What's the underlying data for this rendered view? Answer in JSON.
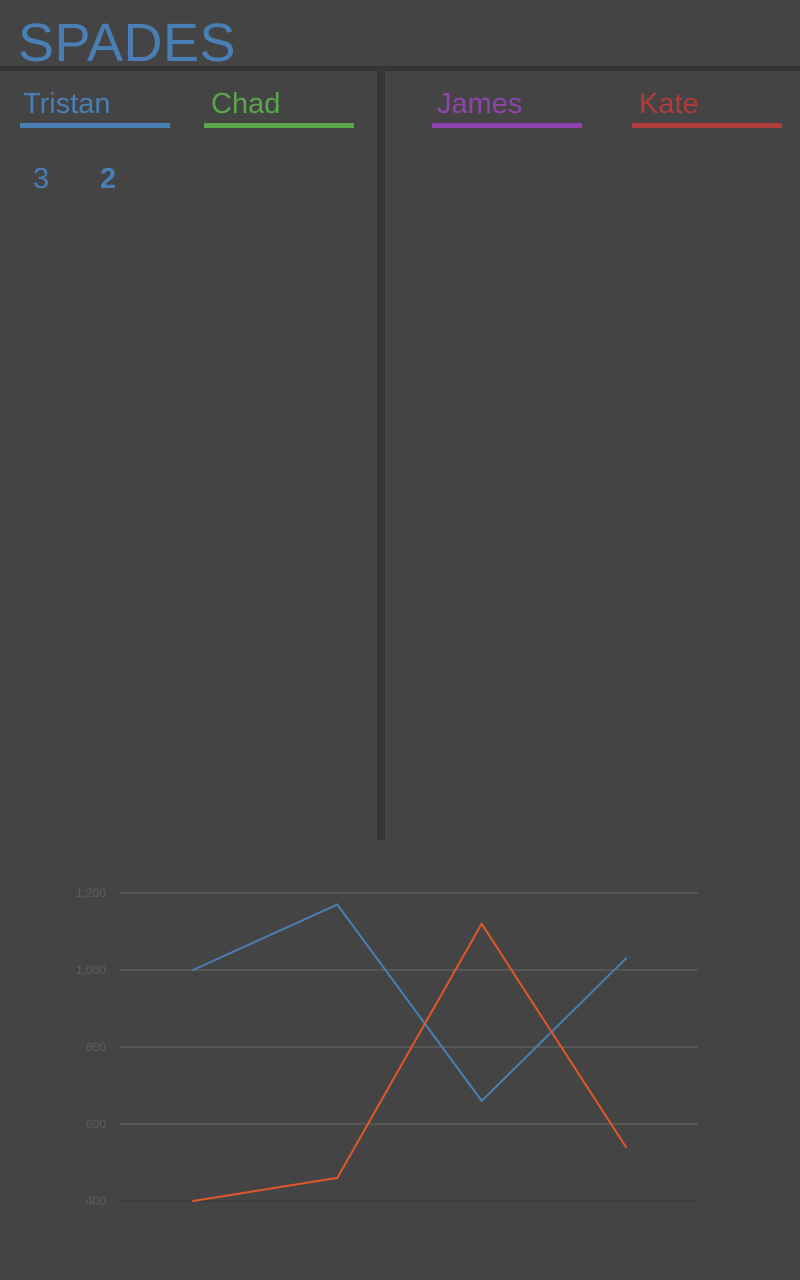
{
  "app": {
    "title": "SPADES"
  },
  "team_left": {
    "players": [
      {
        "name": "Tristan",
        "color": "#4a7fb5"
      },
      {
        "name": "Chad",
        "color": "#5aa64a"
      }
    ],
    "scores": [
      "3",
      "2"
    ]
  },
  "team_right": {
    "players": [
      {
        "name": "James",
        "color": "#8e44ad"
      },
      {
        "name": "Kate",
        "color": "#b03c3c"
      }
    ]
  },
  "chart_data": {
    "type": "line",
    "x": [
      1,
      2,
      3,
      4
    ],
    "ylim": [
      400,
      1200
    ],
    "yticks": [
      "400",
      "600",
      "800",
      "1,000",
      "1,200"
    ],
    "grid": true,
    "series": [
      {
        "color": "#4a7fb5",
        "values": [
          1000,
          1170,
          660,
          1030
        ]
      },
      {
        "color": "#e0582a",
        "values": [
          400,
          460,
          1120,
          540
        ]
      }
    ]
  }
}
